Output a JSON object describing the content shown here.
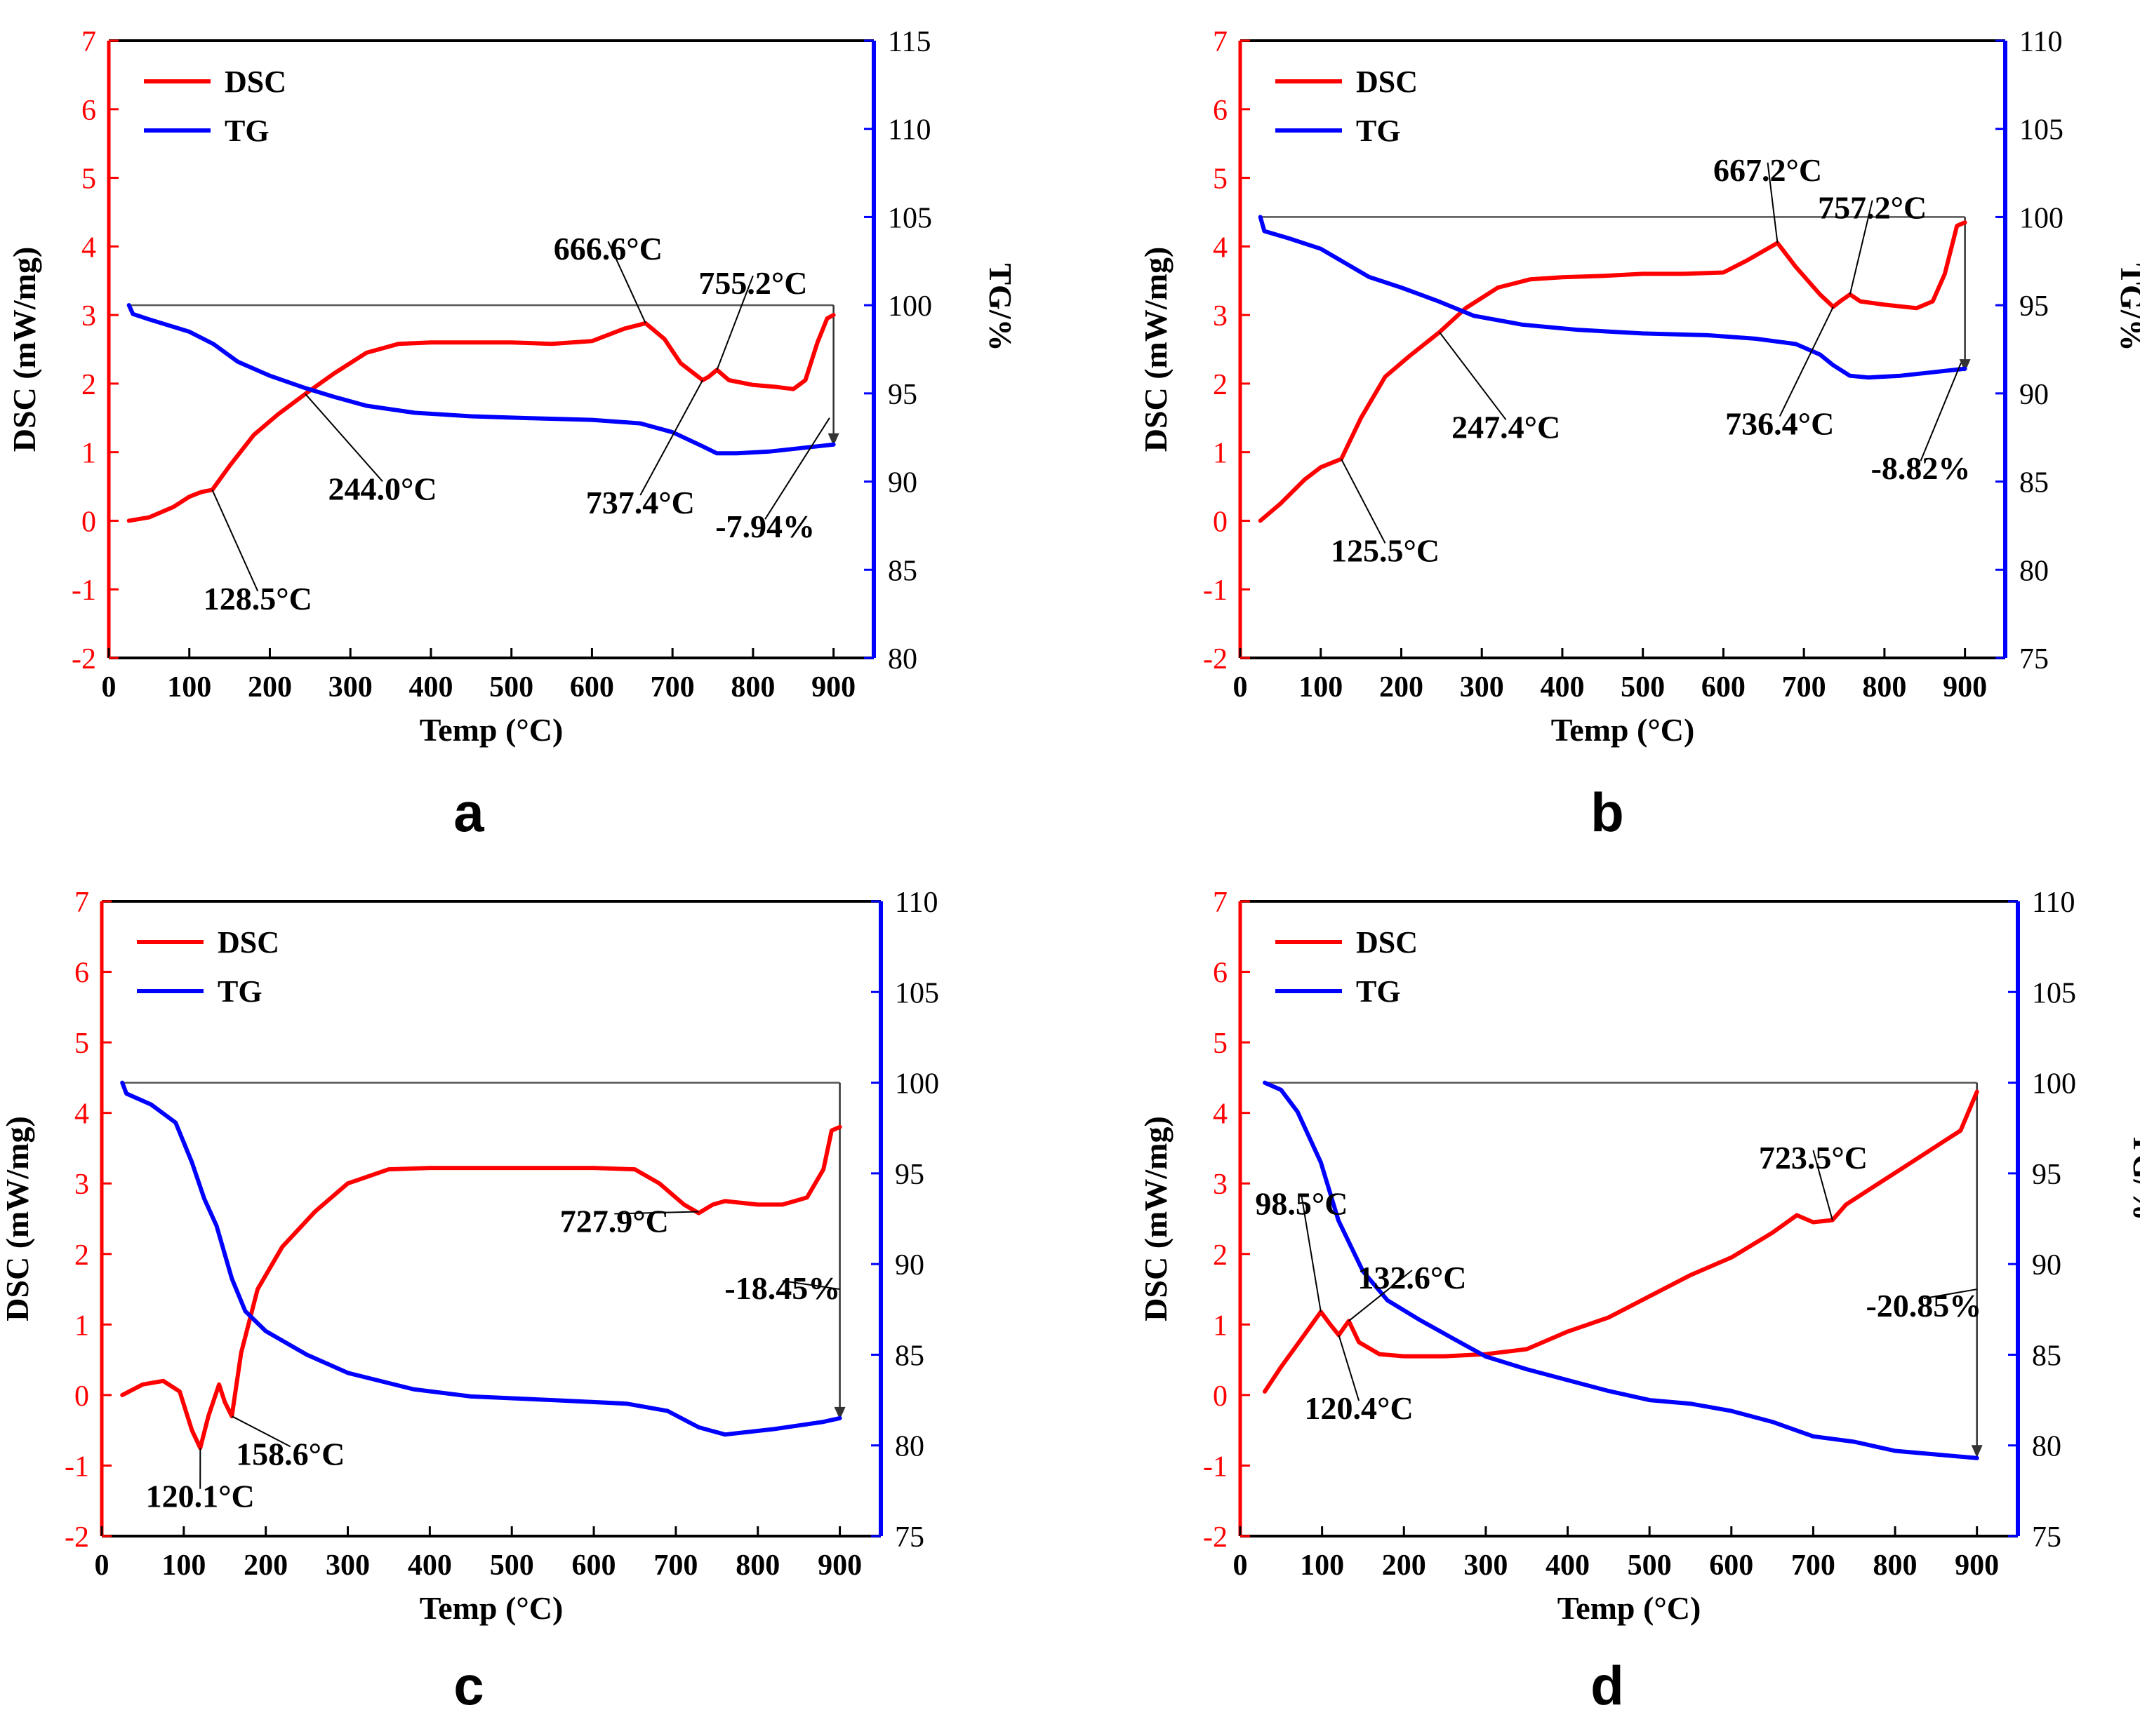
{
  "figure": {
    "panels": [
      "a",
      "b",
      "c",
      "d"
    ]
  },
  "colors": {
    "dsc": "#ff0000",
    "tg": "#0000ff",
    "axis_left": "#ff0000",
    "axis_right": "#0000ff",
    "frame": "#000000",
    "annotation": "#000000"
  },
  "chart_data": [
    {
      "type": "line",
      "panel_label": "a",
      "xlabel": "Temp (°C)",
      "ylabel": "DSC (mW/mg)",
      "y2label": "TG/%",
      "xlim": [
        0,
        950
      ],
      "ylim": [
        -2,
        7
      ],
      "y2lim": [
        80,
        115
      ],
      "xticks": [
        0,
        100,
        200,
        300,
        400,
        500,
        600,
        700,
        800,
        900
      ],
      "yticks": [
        -2,
        -1,
        0,
        1,
        2,
        3,
        4,
        5,
        6,
        7
      ],
      "y2ticks": [
        80,
        85,
        90,
        95,
        100,
        105,
        110,
        115
      ],
      "legend": [
        "DSC",
        "TG"
      ],
      "legend_position": "top-left",
      "series": [
        {
          "name": "DSC",
          "axis": "left",
          "x": [
            25,
            50,
            80,
            100,
            115,
            128.5,
            150,
            180,
            210,
            244,
            280,
            320,
            360,
            400,
            450,
            500,
            550,
            600,
            640,
            666.6,
            690,
            710,
            737.4,
            745,
            755.2,
            770,
            800,
            830,
            850,
            865,
            880,
            892,
            900
          ],
          "y": [
            0,
            0.05,
            0.2,
            0.35,
            0.42,
            0.45,
            0.8,
            1.25,
            1.55,
            1.85,
            2.15,
            2.45,
            2.58,
            2.6,
            2.6,
            2.6,
            2.58,
            2.62,
            2.8,
            2.88,
            2.65,
            2.3,
            2.05,
            2.1,
            2.2,
            2.05,
            1.98,
            1.95,
            1.92,
            2.05,
            2.6,
            2.95,
            3.0
          ]
        },
        {
          "name": "TG",
          "axis": "right",
          "x": [
            25,
            30,
            50,
            100,
            130,
            160,
            200,
            244,
            280,
            320,
            380,
            450,
            520,
            600,
            660,
            700,
            737.4,
            755,
            780,
            820,
            860,
            900
          ],
          "y": [
            100,
            99.5,
            99.2,
            98.5,
            97.8,
            96.8,
            96.0,
            95.3,
            94.8,
            94.3,
            93.9,
            93.7,
            93.6,
            93.5,
            93.3,
            92.8,
            92.0,
            91.6,
            91.6,
            91.7,
            91.9,
            92.1
          ]
        }
      ],
      "reference_line": {
        "y2": 100,
        "x_start": 25,
        "x_end": 900
      },
      "drop_arrow": {
        "x": 900,
        "y2_from": 100,
        "y2_to": 92.1
      },
      "annotations": [
        {
          "text": "666.6°C",
          "x": 666.6,
          "y": 2.88,
          "tx": 620,
          "ty": 3.95
        },
        {
          "text": "755.2°C",
          "x": 755.2,
          "y": 2.2,
          "tx": 800,
          "ty": 3.45
        },
        {
          "text": "737.4°C",
          "x": 737.4,
          "y": 2.05,
          "tx": 660,
          "ty": 0.25
        },
        {
          "text": "244.0°C",
          "x": 244,
          "y": 1.85,
          "tx": 340,
          "ty": 0.45
        },
        {
          "text": "128.5°C",
          "x": 128.5,
          "y": 0.45,
          "tx": 185,
          "ty": -1.15
        },
        {
          "text": "-7.94%",
          "x": 895,
          "y": 1.5,
          "tx": 815,
          "ty": -0.1
        }
      ]
    },
    {
      "type": "line",
      "panel_label": "b",
      "xlabel": "Temp (°C)",
      "ylabel": "DSC (mW/mg)",
      "y2label": "TG/%",
      "xlim": [
        0,
        950
      ],
      "ylim": [
        -2,
        7
      ],
      "y2lim": [
        75,
        110
      ],
      "xticks": [
        0,
        100,
        200,
        300,
        400,
        500,
        600,
        700,
        800,
        900
      ],
      "yticks": [
        -2,
        -1,
        0,
        1,
        2,
        3,
        4,
        5,
        6,
        7
      ],
      "y2ticks": [
        75,
        80,
        85,
        90,
        95,
        100,
        105,
        110
      ],
      "legend": [
        "DSC",
        "TG"
      ],
      "legend_position": "top-left",
      "series": [
        {
          "name": "DSC",
          "axis": "left",
          "x": [
            25,
            50,
            80,
            100,
            125.5,
            150,
            180,
            210,
            247.4,
            280,
            320,
            360,
            400,
            450,
            500,
            550,
            600,
            630,
            667.2,
            690,
            720,
            736.4,
            745,
            757.2,
            770,
            800,
            840,
            860,
            875,
            890,
            900
          ],
          "y": [
            0,
            0.25,
            0.6,
            0.78,
            0.9,
            1.5,
            2.1,
            2.4,
            2.75,
            3.1,
            3.4,
            3.52,
            3.55,
            3.57,
            3.6,
            3.6,
            3.62,
            3.8,
            4.05,
            3.7,
            3.3,
            3.12,
            3.2,
            3.3,
            3.2,
            3.15,
            3.1,
            3.2,
            3.6,
            4.3,
            4.35
          ]
        },
        {
          "name": "TG",
          "axis": "right",
          "x": [
            25,
            30,
            60,
            100,
            130,
            160,
            200,
            247.4,
            290,
            350,
            420,
            500,
            580,
            640,
            690,
            720,
            736.4,
            757,
            780,
            820,
            860,
            900
          ],
          "y": [
            100,
            99.2,
            98.8,
            98.2,
            97.4,
            96.6,
            96.0,
            95.2,
            94.4,
            93.9,
            93.6,
            93.4,
            93.3,
            93.1,
            92.8,
            92.2,
            91.6,
            91.0,
            90.9,
            91.0,
            91.2,
            91.4
          ]
        }
      ],
      "reference_line": {
        "y2": 100,
        "x_start": 25,
        "x_end": 900
      },
      "drop_arrow": {
        "x": 900,
        "y2_from": 100,
        "y2_to": 91.3
      },
      "annotations": [
        {
          "text": "667.2°C",
          "x": 667.2,
          "y": 4.05,
          "tx": 655,
          "ty": 5.1
        },
        {
          "text": "757.2°C",
          "x": 757.2,
          "y": 3.3,
          "tx": 785,
          "ty": 4.55
        },
        {
          "text": "736.4°C",
          "x": 736.4,
          "y": 3.12,
          "tx": 670,
          "ty": 1.4
        },
        {
          "text": "247.4°C",
          "x": 247.4,
          "y": 2.75,
          "tx": 330,
          "ty": 1.35
        },
        {
          "text": "125.5°C",
          "x": 125.5,
          "y": 0.9,
          "tx": 180,
          "ty": -0.45
        },
        {
          "text": "-8.82%",
          "x": 895,
          "y": 2.3,
          "tx": 845,
          "ty": 0.75
        }
      ]
    },
    {
      "type": "line",
      "panel_label": "c",
      "xlabel": "Temp (°C)",
      "ylabel": "DSC (mW/mg)",
      "y2label": "",
      "xlim": [
        0,
        950
      ],
      "ylim": [
        -2,
        7
      ],
      "y2lim": [
        75,
        110
      ],
      "xticks": [
        0,
        100,
        200,
        300,
        400,
        500,
        600,
        700,
        800,
        900
      ],
      "yticks": [
        -2,
        -1,
        0,
        1,
        2,
        3,
        4,
        5,
        6,
        7
      ],
      "y2ticks": [
        75,
        80,
        85,
        90,
        95,
        100,
        105,
        110
      ],
      "legend": [
        "DSC",
        "TG"
      ],
      "legend_position": "top-left",
      "series": [
        {
          "name": "DSC",
          "axis": "left",
          "x": [
            25,
            50,
            75,
            95,
            110,
            120.1,
            130,
            143,
            150,
            158.6,
            170,
            190,
            220,
            260,
            300,
            350,
            400,
            450,
            500,
            550,
            600,
            650,
            680,
            710,
            727.9,
            745,
            760,
            800,
            830,
            860,
            880,
            890,
            900
          ],
          "y": [
            0,
            0.15,
            0.2,
            0.05,
            -0.5,
            -0.75,
            -0.3,
            0.15,
            -0.1,
            -0.3,
            0.6,
            1.5,
            2.1,
            2.6,
            3.0,
            3.2,
            3.22,
            3.22,
            3.22,
            3.22,
            3.22,
            3.2,
            3.0,
            2.7,
            2.58,
            2.7,
            2.75,
            2.7,
            2.7,
            2.8,
            3.2,
            3.75,
            3.8
          ]
        },
        {
          "name": "TG",
          "axis": "right",
          "x": [
            25,
            30,
            60,
            90,
            110,
            125,
            140,
            158.6,
            175,
            200,
            250,
            300,
            380,
            450,
            550,
            640,
            690,
            727.9,
            760,
            820,
            880,
            900
          ],
          "y": [
            100,
            99.4,
            98.8,
            97.8,
            95.6,
            93.6,
            92.1,
            89.2,
            87.4,
            86.3,
            85.0,
            84.0,
            83.1,
            82.7,
            82.5,
            82.3,
            81.9,
            81.0,
            80.6,
            80.9,
            81.3,
            81.5
          ]
        }
      ],
      "reference_line": {
        "y2": 100,
        "x_start": 25,
        "x_end": 900
      },
      "drop_arrow": {
        "x": 900,
        "y2_from": 100,
        "y2_to": 81.5
      },
      "annotations": [
        {
          "text": "727.9°C",
          "x": 727.9,
          "y": 2.6,
          "tx": 625,
          "ty": 2.45
        },
        {
          "text": "-18.45%",
          "x": 900,
          "y": 1.5,
          "tx": 830,
          "ty": 1.5
        },
        {
          "text": "158.6°C",
          "x": 158.6,
          "y": -0.3,
          "tx": 230,
          "ty": -0.85
        },
        {
          "text": "120.1°C",
          "x": 120.1,
          "y": -0.75,
          "tx": 120,
          "ty": -1.45
        }
      ]
    },
    {
      "type": "line",
      "panel_label": "d",
      "xlabel": "Temp (°C)",
      "ylabel": "DSC (mW/mg)",
      "y2label": "TG/%",
      "xlim": [
        0,
        950
      ],
      "ylim": [
        -2,
        7
      ],
      "y2lim": [
        75,
        110
      ],
      "xticks": [
        0,
        100,
        200,
        300,
        400,
        500,
        600,
        700,
        800,
        900
      ],
      "yticks": [
        -2,
        -1,
        0,
        1,
        2,
        3,
        4,
        5,
        6,
        7
      ],
      "y2ticks": [
        75,
        80,
        85,
        90,
        95,
        100,
        105,
        110
      ],
      "legend": [
        "DSC",
        "TG"
      ],
      "legend_position": "top-left",
      "series": [
        {
          "name": "DSC",
          "axis": "left",
          "x": [
            30,
            50,
            75,
            98.5,
            110,
            120.4,
            132.6,
            145,
            170,
            200,
            250,
            300,
            350,
            400,
            450,
            500,
            550,
            600,
            650,
            680,
            700,
            723.5,
            740,
            780,
            820,
            860,
            880,
            900
          ],
          "y": [
            0.05,
            0.4,
            0.8,
            1.18,
            1.0,
            0.85,
            1.05,
            0.75,
            0.58,
            0.55,
            0.55,
            0.58,
            0.65,
            0.9,
            1.1,
            1.4,
            1.7,
            1.95,
            2.3,
            2.55,
            2.45,
            2.48,
            2.7,
            3.0,
            3.3,
            3.6,
            3.75,
            4.3
          ]
        },
        {
          "name": "TG",
          "axis": "right",
          "x": [
            30,
            50,
            70,
            98.5,
            120,
            150,
            180,
            220,
            260,
            300,
            350,
            400,
            450,
            500,
            550,
            600,
            650,
            700,
            750,
            800,
            850,
            900
          ],
          "y": [
            100,
            99.6,
            98.4,
            95.6,
            92.4,
            89.6,
            88.0,
            86.9,
            85.9,
            84.9,
            84.2,
            83.6,
            83.0,
            82.5,
            82.3,
            81.9,
            81.3,
            80.5,
            80.2,
            79.7,
            79.5,
            79.3
          ]
        }
      ],
      "reference_line": {
        "y2": 100,
        "x_start": 30,
        "x_end": 900
      },
      "drop_arrow": {
        "x": 900,
        "y2_from": 100,
        "y2_to": 79.4
      },
      "annotations": [
        {
          "text": "723.5°C",
          "x": 723.5,
          "y": 2.48,
          "tx": 700,
          "ty": 3.35
        },
        {
          "text": "98.5°C",
          "x": 98.5,
          "y": 1.18,
          "tx": 75,
          "ty": 2.7
        },
        {
          "text": "132.6°C",
          "x": 132.6,
          "y": 1.05,
          "tx": 210,
          "ty": 1.65
        },
        {
          "text": "120.4°C",
          "x": 120.4,
          "y": 0.85,
          "tx": 145,
          "ty": -0.2
        },
        {
          "text": "-20.85%",
          "x": 900,
          "y": 1.5,
          "tx": 835,
          "ty": 1.25
        }
      ]
    }
  ]
}
